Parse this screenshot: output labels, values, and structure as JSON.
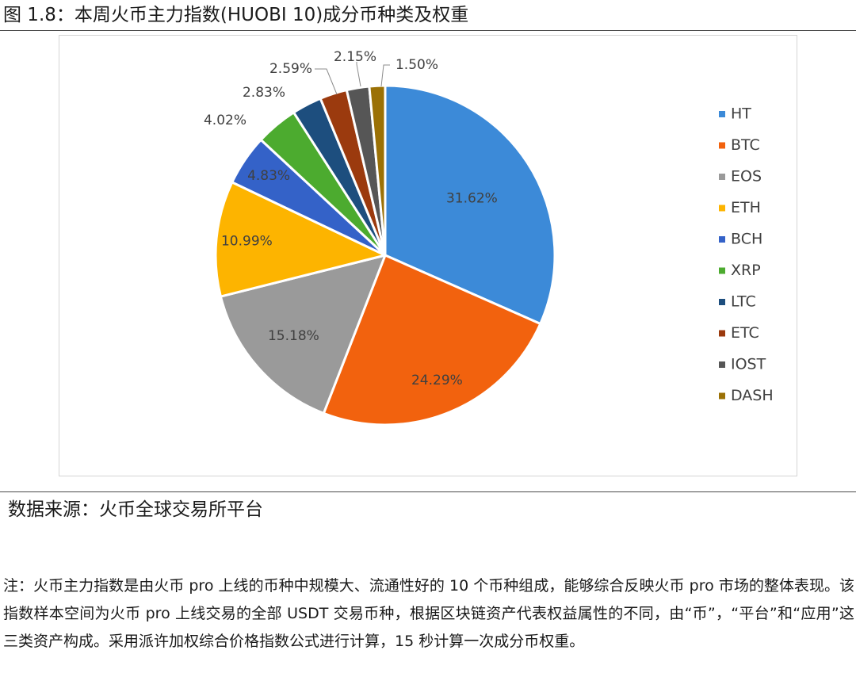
{
  "figure": {
    "title": "图 1.8：本周火币主力指数(HUOBI 10)成分币种类及权重",
    "source": "数据来源：火币全球交易所平台",
    "note": "注：火币主力指数是由火币 pro 上线的币种中规模大、流通性好的 10 个币种组成，能够综合反映火币 pro 市场的整体表现。该指数样本空间为火币 pro 上线交易的全部 USDT 交易币种，根据区块链资产代表权益属性的不同，由“币”，“平台”和“应用”这三类资产构成。采用派许加权综合价格指数公式进行计算，15 秒计算一次成分币权重。"
  },
  "chart_data": {
    "type": "pie",
    "title": "",
    "legend_position": "right",
    "start_angle": "12 o'clock, clockwise",
    "slices": [
      {
        "name": "HT",
        "value": 31.62,
        "label": "31.62%",
        "color": "#3c8ad8",
        "label_placement": "inside"
      },
      {
        "name": "BTC",
        "value": 24.29,
        "label": "24.29%",
        "color": "#f2620e",
        "label_placement": "inside"
      },
      {
        "name": "EOS",
        "value": 15.18,
        "label": "15.18%",
        "color": "#9a9a9a",
        "label_placement": "inside"
      },
      {
        "name": "ETH",
        "value": 10.99,
        "label": "10.99%",
        "color": "#fdb400",
        "label_placement": "inside"
      },
      {
        "name": "BCH",
        "value": 4.83,
        "label": "4.83%",
        "color": "#3462c8",
        "label_placement": "inside"
      },
      {
        "name": "XRP",
        "value": 4.02,
        "label": "4.02%",
        "color": "#4cab2f",
        "label_placement": "outside"
      },
      {
        "name": "LTC",
        "value": 2.83,
        "label": "2.83%",
        "color": "#1d4e7e",
        "label_placement": "outside"
      },
      {
        "name": "ETC",
        "value": 2.59,
        "label": "2.59%",
        "color": "#9b3a0e",
        "label_placement": "outside"
      },
      {
        "name": "IOST",
        "value": 2.15,
        "label": "2.15%",
        "color": "#565656",
        "label_placement": "outside"
      },
      {
        "name": "DASH",
        "value": 1.5,
        "label": "1.50%",
        "color": "#9b7106",
        "label_placement": "outside"
      }
    ]
  }
}
